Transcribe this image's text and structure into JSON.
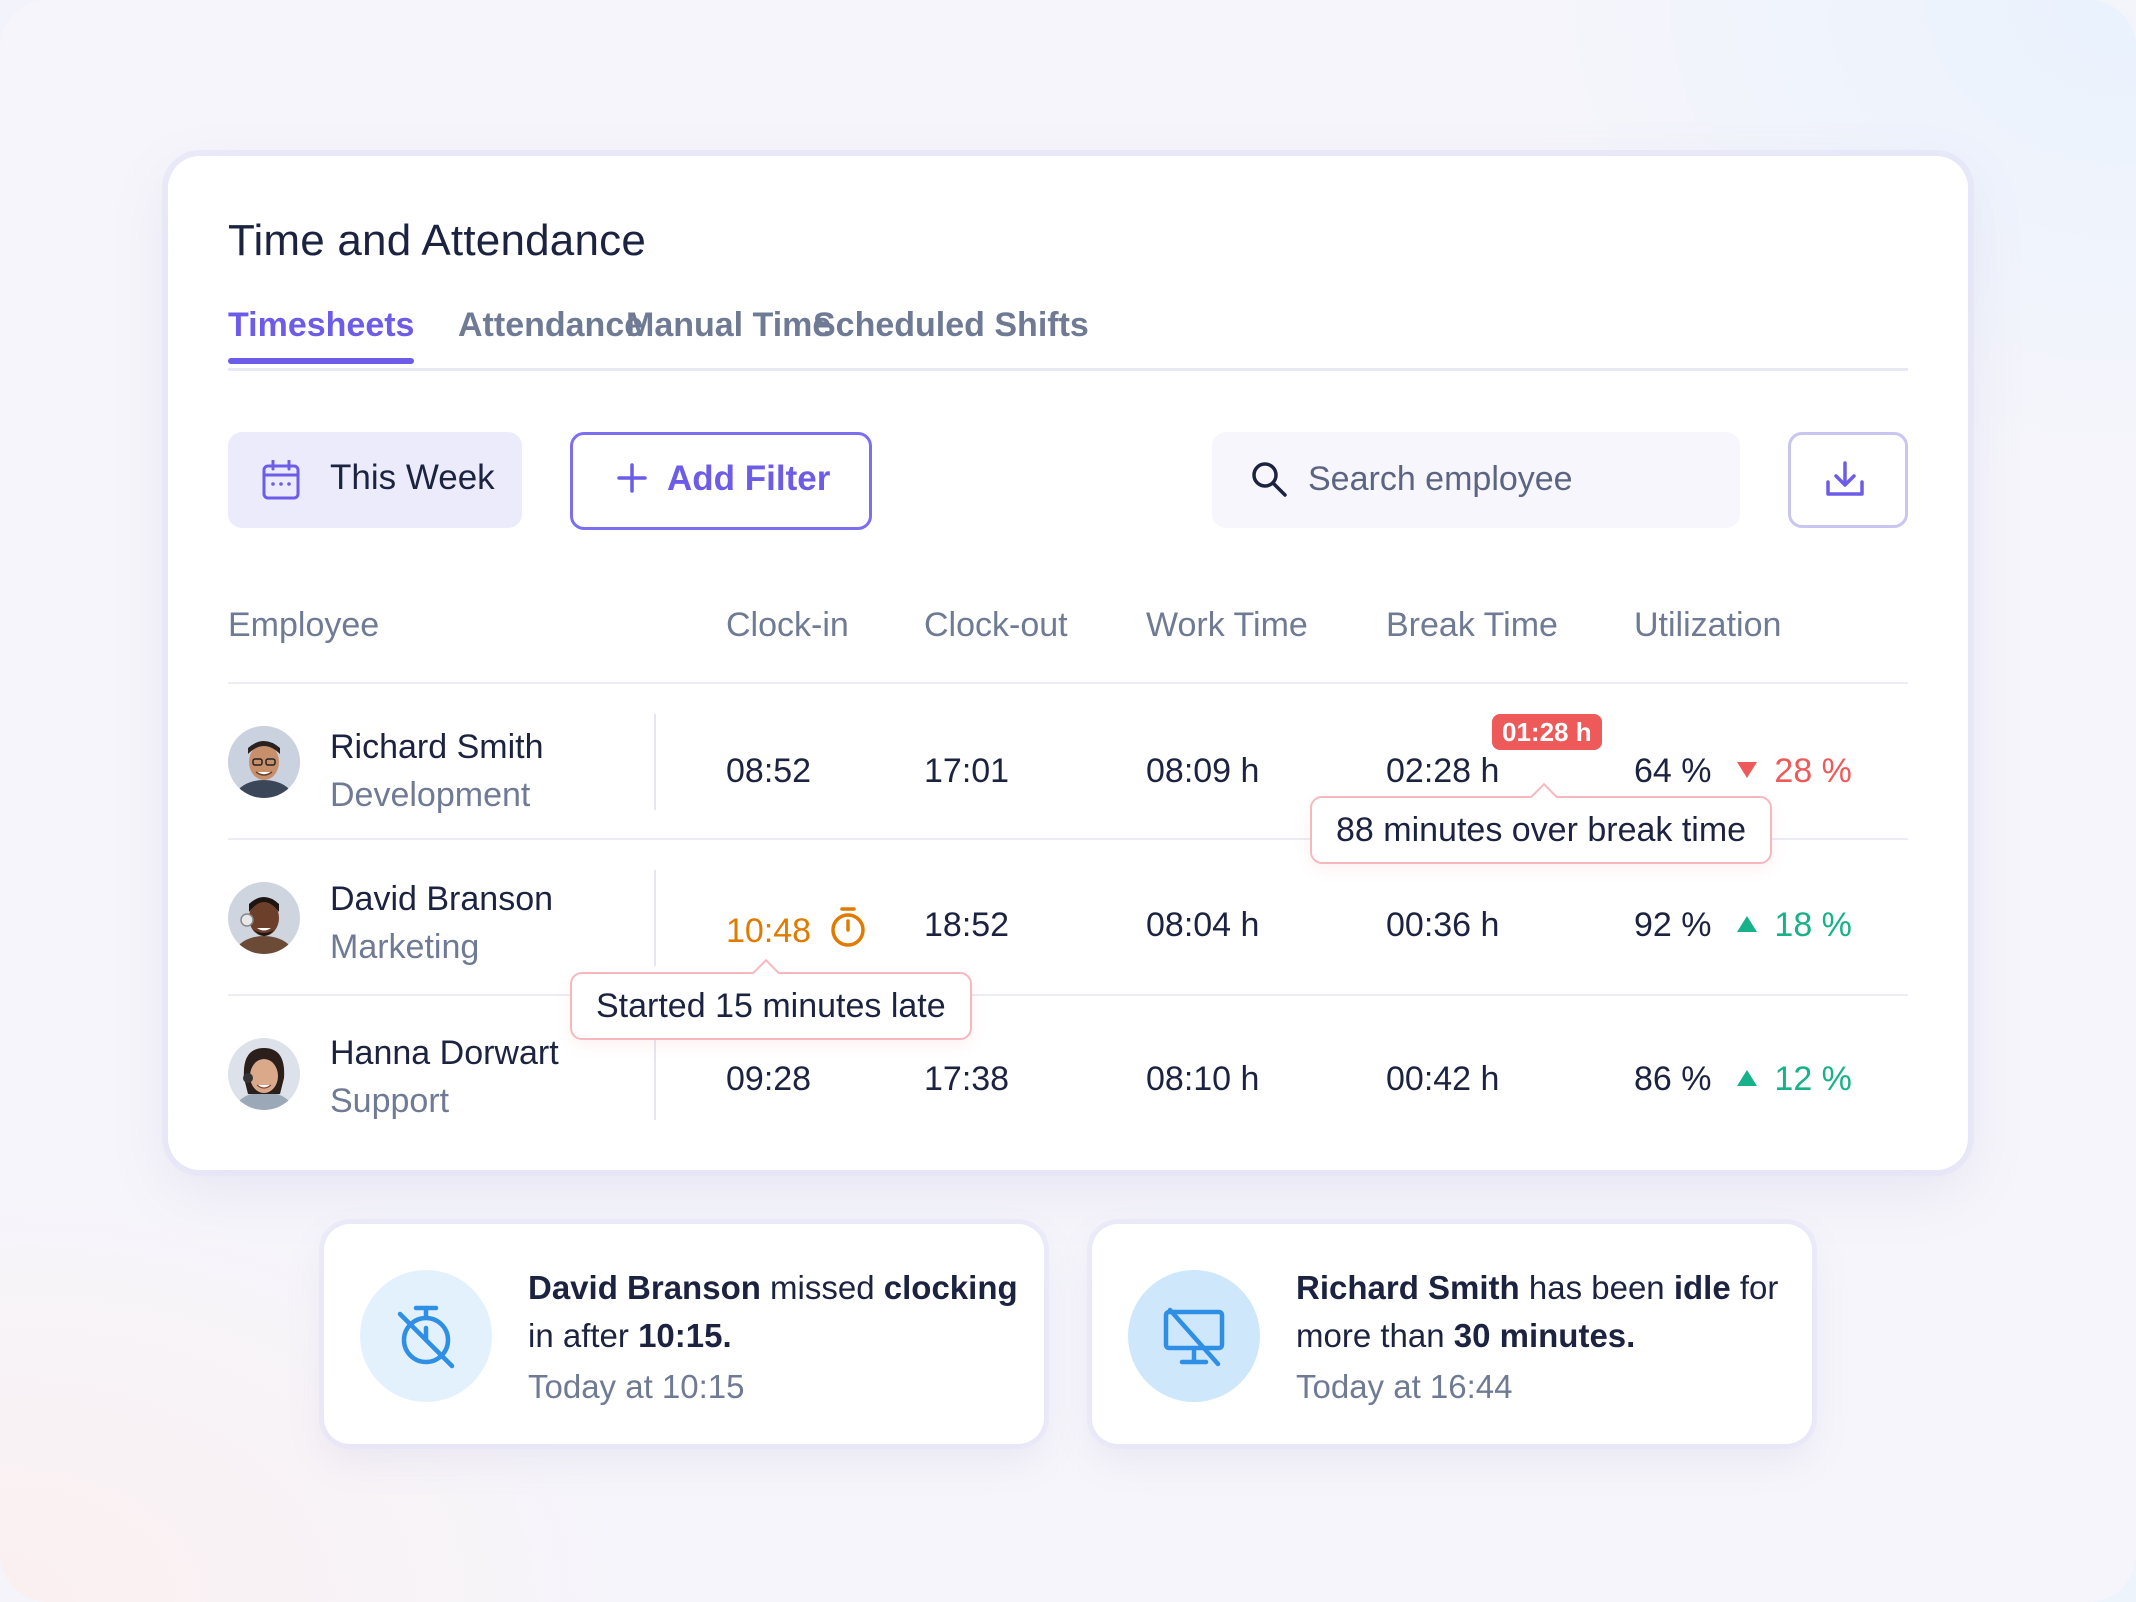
{
  "page": {
    "title": "Time and Attendance"
  },
  "tabs": [
    {
      "label": "Timesheets",
      "active": true
    },
    {
      "label": "Attendance"
    },
    {
      "label": "Manual Time"
    },
    {
      "label": "Scheduled Shifts"
    }
  ],
  "toolbar": {
    "date_range_label": "This Week",
    "add_filter_label": "Add Filter",
    "search_placeholder": "Search employee",
    "download_icon": "download-icon"
  },
  "table": {
    "columns": [
      "Employee",
      "Clock-in",
      "Clock-out",
      "Work Time",
      "Break Time",
      "Utilization"
    ],
    "rows": [
      {
        "name": "Richard Smith",
        "department": "Development",
        "clock_in": "08:52",
        "clock_out": "17:01",
        "work_time": "08:09 h",
        "break_time": "02:28 h",
        "break_over_badge": "01:28 h",
        "utilization": "64 %",
        "trend": "28 %",
        "trend_dir": "down"
      },
      {
        "name": "David Branson",
        "department": "Marketing",
        "clock_in": "10:48",
        "clock_out": "18:52",
        "work_time": "08:04 h",
        "break_time": "00:36 h",
        "utilization": "92 %",
        "trend": "18 %",
        "trend_dir": "up"
      },
      {
        "name": "Hanna Dorwart",
        "department": "Support",
        "clock_in": "09:28",
        "clock_out": "17:38",
        "work_time": "08:10 h",
        "break_time": "00:42 h",
        "utilization": "86 %",
        "trend": "12 %",
        "trend_dir": "up"
      }
    ]
  },
  "tooltips": {
    "break": "88 minutes over break time",
    "late": "Started 15 minutes late"
  },
  "notifications": [
    {
      "parts": [
        "David Branson",
        " missed ",
        "clocking",
        " in after ",
        "10:15."
      ],
      "time": "Today at 10:15",
      "icon": "stopwatch-off-icon"
    },
    {
      "parts": [
        "Richard Smith",
        " has been ",
        "idle",
        " for more than ",
        "30 minutes."
      ],
      "time": "Today at 16:44",
      "icon": "monitor-off-icon"
    }
  ],
  "colors": {
    "accent": "#6c5ce7",
    "danger": "#ee5a5a",
    "success": "#18b28a",
    "warning": "#e07b00",
    "notif_icon_bg_1": "#e3f1fd",
    "notif_icon_bg_2": "#cfe7fb",
    "notif_icon": "#2f8fe5"
  }
}
